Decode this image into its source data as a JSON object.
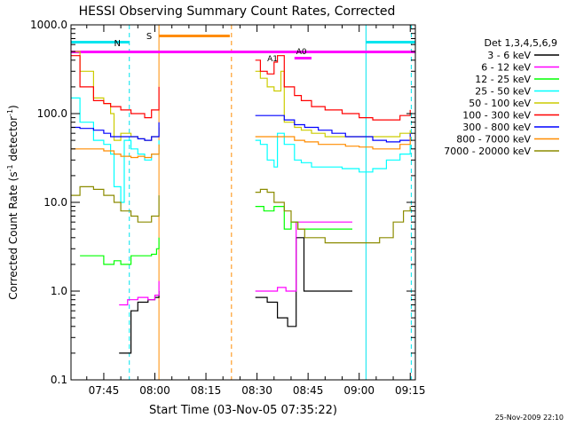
{
  "chart_data": {
    "type": "line",
    "title": "HESSI Observing Summary Count Rates, Corrected",
    "xlabel": "Start Time (03-Nov-05 07:35:22)",
    "ylabel_main": "Corrected Count Rate (s",
    "ylabel_sup1": "-1",
    "ylabel_mid": " detector",
    "ylabel_sup2": "-1",
    "ylabel_end": ")",
    "ylim": [
      0.1,
      1000
    ],
    "yscale": "log",
    "y_ticks": [
      "0.1",
      "1.0",
      "10.0",
      "100.0",
      "1000.0"
    ],
    "x_ticks": [
      "07:45",
      "08:00",
      "08:15",
      "08:30",
      "08:45",
      "09:00",
      "09:15"
    ],
    "x_tick_minutes": [
      45,
      60,
      75,
      90,
      105,
      120,
      135
    ],
    "x_range_minutes": [
      35.37,
      136.5
    ],
    "legend_title": "Det 1,3,4,5,6,9",
    "legend_position": "right",
    "timestamp": "25-Nov-2009 22:10",
    "markers": [
      {
        "label": "N",
        "color": "#00e5ee"
      },
      {
        "label": "S",
        "color": "#ff8c00"
      },
      {
        "label": "A1",
        "color": "#ff00ff"
      },
      {
        "label": "A0",
        "color": "#ff00ff"
      }
    ],
    "series": [
      {
        "name": "3 - 6 keV",
        "color": "#000000",
        "x": [
          49.5,
          52.3,
          53,
          55,
          58,
          60,
          61.2,
          89.5,
          93,
          96,
          99,
          101,
          101.5,
          103.8,
          108,
          118
        ],
        "y": [
          0.2,
          0.2,
          0.6,
          0.75,
          0.8,
          0.85,
          1.0,
          0.85,
          0.75,
          0.5,
          0.4,
          0.4,
          4.0,
          1.0,
          1.0,
          1.0
        ]
      },
      {
        "name": "6 - 12 keV",
        "color": "#ff00ff",
        "x": [
          49.5,
          52,
          55,
          58,
          60,
          61.2,
          89.5,
          93,
          96,
          98.5,
          101,
          101.5,
          104,
          108,
          118
        ],
        "y": [
          0.7,
          0.8,
          0.85,
          0.8,
          0.9,
          1.3,
          1.0,
          1.0,
          1.1,
          1.0,
          1.0,
          6.0,
          6.0,
          6.0,
          6.0
        ]
      },
      {
        "name": "12 - 25 keV",
        "color": "#00ff00",
        "x": [
          38,
          42,
          45,
          48,
          50,
          53,
          55,
          57,
          59,
          60.5,
          61.2,
          89.5,
          92,
          95,
          98,
          100,
          102,
          105,
          110,
          118
        ],
        "y": [
          2.5,
          2.5,
          2.0,
          2.2,
          2.0,
          2.5,
          2.5,
          2.5,
          2.6,
          3.0,
          4.0,
          9.0,
          8.0,
          9.0,
          5.0,
          6.0,
          5.0,
          5.0,
          5.0,
          5.0
        ]
      },
      {
        "name": "25 - 50 keV",
        "color": "#00ffff",
        "x": [
          35.5,
          38,
          42,
          45,
          47,
          48,
          50,
          51,
          53,
          55,
          57,
          59,
          61.2,
          89.5,
          91,
          93,
          95,
          96,
          98,
          101,
          103,
          106,
          110,
          115,
          120,
          124,
          128,
          132,
          135
        ],
        "y": [
          150,
          80,
          50,
          45,
          35,
          15,
          10,
          50,
          40,
          35,
          30,
          35,
          50,
          50,
          45,
          30,
          25,
          60,
          45,
          30,
          28,
          25,
          25,
          24,
          22,
          24,
          30,
          35,
          45
        ]
      },
      {
        "name": "50 - 100 keV",
        "color": "#cccc00",
        "x": [
          35.5,
          38,
          42,
          45,
          47,
          48,
          50,
          53,
          55,
          57,
          59,
          61.2,
          89.5,
          91,
          93,
          95,
          97,
          98,
          101,
          103,
          106,
          110,
          115,
          120,
          124,
          128,
          132,
          135
        ],
        "y": [
          500,
          300,
          150,
          130,
          100,
          50,
          60,
          55,
          52,
          50,
          55,
          70,
          300,
          250,
          200,
          180,
          300,
          80,
          70,
          65,
          60,
          55,
          55,
          55,
          55,
          55,
          60,
          65
        ]
      },
      {
        "name": "100 - 300 keV",
        "color": "#ff0000",
        "x": [
          35.5,
          38,
          42,
          45,
          47,
          50,
          53,
          55,
          57,
          59,
          61.2,
          89.5,
          91,
          93,
          95,
          96,
          98,
          101,
          103,
          106,
          110,
          115,
          120,
          124,
          128,
          132,
          135
        ],
        "y": [
          450,
          200,
          140,
          130,
          120,
          110,
          100,
          100,
          90,
          110,
          200,
          400,
          300,
          280,
          380,
          450,
          200,
          160,
          140,
          120,
          110,
          100,
          90,
          85,
          85,
          95,
          110
        ]
      },
      {
        "name": "300 - 800 keV",
        "color": "#0000ff",
        "x": [
          35.5,
          38,
          42,
          45,
          47,
          50,
          53,
          55,
          57,
          59,
          61.2,
          89.5,
          92,
          95,
          98,
          101,
          104,
          108,
          112,
          116,
          120,
          124,
          128,
          132,
          135
        ],
        "y": [
          70,
          68,
          65,
          60,
          55,
          55,
          55,
          52,
          50,
          55,
          80,
          95,
          95,
          95,
          85,
          75,
          70,
          65,
          60,
          55,
          55,
          50,
          48,
          50,
          60
        ]
      },
      {
        "name": "800 - 7000 keV",
        "color": "#ff8c00",
        "x": [
          35.5,
          38,
          42,
          45,
          48,
          50,
          53,
          55,
          57,
          59,
          61.2,
          89.5,
          92,
          95,
          98,
          101,
          104,
          108,
          112,
          116,
          120,
          124,
          128,
          132,
          135
        ],
        "y": [
          40,
          40,
          40,
          38,
          35,
          33,
          32,
          33,
          32,
          35,
          45,
          55,
          55,
          55,
          55,
          50,
          48,
          45,
          45,
          43,
          42,
          40,
          40,
          45,
          55
        ]
      },
      {
        "name": "7000 - 20000 keV",
        "color": "#8b8b00",
        "x": [
          35.5,
          38,
          42,
          45,
          48,
          50,
          53,
          55,
          57,
          59,
          61.2,
          89.5,
          91,
          93,
          95,
          98,
          100,
          102,
          104,
          107,
          110,
          114,
          118,
          122,
          126,
          130,
          133,
          135
        ],
        "y": [
          12,
          15,
          14,
          12,
          10,
          8,
          7,
          6,
          6,
          7,
          12,
          13,
          14,
          13,
          10,
          8,
          6,
          5,
          4,
          4,
          3.5,
          3.5,
          3.5,
          3.5,
          4,
          6,
          8,
          9
        ]
      }
    ]
  }
}
